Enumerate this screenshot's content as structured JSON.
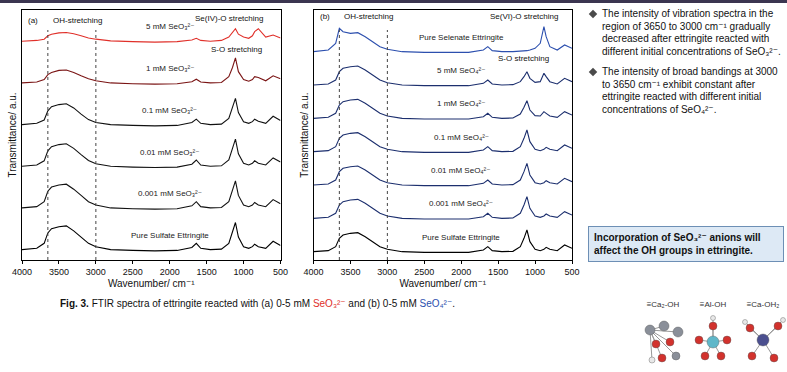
{
  "chart_data": [
    {
      "type": "line",
      "panel": "(a)",
      "x_label": "Wavenumber/ cm⁻¹",
      "y_label": "Transmittance/ a.u.",
      "xlim": [
        4000,
        500
      ],
      "xticks": [
        4000,
        3500,
        3000,
        2500,
        2000,
        1500,
        1000,
        500
      ],
      "ylim": [
        0,
        6
      ],
      "grid": false,
      "tick_labels": "x",
      "marked_wavenumbers": [
        3650,
        3000
      ],
      "annotations": [
        {
          "text": "(a)",
          "x": 3850,
          "y": 5.75
        },
        {
          "text": "OH-stretching",
          "x": 3250,
          "y": 5.75
        },
        {
          "text": "Se(IV)-O stretching",
          "x": 1200,
          "y": 5.8
        },
        {
          "text": "S-O stretching",
          "x": 1100,
          "y": 5.05
        }
      ],
      "x": [
        4000,
        3800,
        3700,
        3650,
        3600,
        3500,
        3400,
        3300,
        3200,
        3100,
        3000,
        2800,
        2500,
        2200,
        1900,
        1700,
        1640,
        1580,
        1450,
        1300,
        1200,
        1150,
        1110,
        1070,
        1000,
        930,
        880,
        850,
        800,
        700,
        600,
        500
      ],
      "series": [
        {
          "name": "Pure Sulfate Ettringite",
          "color": "#000000",
          "values": [
            0.25,
            0.28,
            0.4,
            0.65,
            0.75,
            0.8,
            0.82,
            0.7,
            0.55,
            0.4,
            0.32,
            0.25,
            0.23,
            0.22,
            0.23,
            0.3,
            0.4,
            0.28,
            0.25,
            0.26,
            0.4,
            0.65,
            0.9,
            0.55,
            0.32,
            0.28,
            0.32,
            0.38,
            0.32,
            0.28,
            0.45,
            0.35
          ]
        },
        {
          "name": "0.001 mM SeO₃²⁻",
          "color": "#111111",
          "values": [
            1.25,
            1.28,
            1.4,
            1.65,
            1.75,
            1.8,
            1.82,
            1.7,
            1.55,
            1.4,
            1.32,
            1.25,
            1.23,
            1.22,
            1.23,
            1.3,
            1.4,
            1.28,
            1.25,
            1.26,
            1.4,
            1.65,
            1.9,
            1.55,
            1.32,
            1.28,
            1.32,
            1.38,
            1.32,
            1.28,
            1.45,
            1.35
          ]
        },
        {
          "name": "0.01 mM SeO₃²⁻",
          "color": "#111111",
          "values": [
            2.25,
            2.28,
            2.38,
            2.62,
            2.72,
            2.77,
            2.79,
            2.68,
            2.53,
            2.39,
            2.31,
            2.25,
            2.23,
            2.22,
            2.23,
            2.3,
            2.4,
            2.28,
            2.25,
            2.26,
            2.4,
            2.65,
            2.9,
            2.55,
            2.32,
            2.28,
            2.32,
            2.38,
            2.32,
            2.28,
            2.45,
            2.35
          ]
        },
        {
          "name": "0.1 mM SeO₃²⁻",
          "color": "#111111",
          "values": [
            3.25,
            3.28,
            3.36,
            3.58,
            3.68,
            3.73,
            3.75,
            3.65,
            3.5,
            3.37,
            3.3,
            3.25,
            3.23,
            3.22,
            3.23,
            3.3,
            3.38,
            3.28,
            3.25,
            3.26,
            3.4,
            3.64,
            3.88,
            3.54,
            3.32,
            3.28,
            3.32,
            3.38,
            3.33,
            3.28,
            3.45,
            3.35
          ]
        },
        {
          "name": "1 mM SeO₃²⁻",
          "color": "#7a1414",
          "values": [
            4.25,
            4.27,
            4.33,
            4.45,
            4.5,
            4.55,
            4.56,
            4.5,
            4.42,
            4.35,
            4.3,
            4.25,
            4.23,
            4.22,
            4.23,
            4.28,
            4.34,
            4.27,
            4.25,
            4.26,
            4.4,
            4.62,
            4.85,
            4.52,
            4.33,
            4.29,
            4.33,
            4.4,
            4.38,
            4.3,
            4.42,
            4.35
          ]
        },
        {
          "name": "5 mM SeO₃²⁻",
          "color": "#e0302a",
          "values": [
            5.25,
            5.27,
            5.3,
            5.38,
            5.42,
            5.45,
            5.46,
            5.43,
            5.38,
            5.33,
            5.3,
            5.26,
            5.24,
            5.23,
            5.24,
            5.28,
            5.32,
            5.27,
            5.25,
            5.27,
            5.35,
            5.45,
            5.55,
            5.42,
            5.35,
            5.32,
            5.38,
            5.48,
            5.55,
            5.35,
            5.4,
            5.33
          ]
        }
      ]
    },
    {
      "type": "line",
      "panel": "(b)",
      "x_label": "Wavenumber/ cm⁻¹",
      "y_label": "Transmittance/ a.u.",
      "xlim": [
        4000,
        500
      ],
      "xticks": [
        4000,
        3500,
        3000,
        2500,
        2000,
        1500,
        1000,
        500
      ],
      "ylim": [
        0,
        7.5
      ],
      "grid": false,
      "tick_labels": "x",
      "marked_wavenumbers": [
        3650,
        3000
      ],
      "annotations": [
        {
          "text": "(b)",
          "x": 3850,
          "y": 7.3
        },
        {
          "text": "OH-stretching",
          "x": 3250,
          "y": 7.3
        },
        {
          "text": "Se(VI)-O stretching",
          "x": 1150,
          "y": 7.3
        },
        {
          "text": "S-O stretching",
          "x": 1150,
          "y": 6.05
        }
      ],
      "x": [
        4000,
        3800,
        3700,
        3650,
        3600,
        3500,
        3400,
        3300,
        3200,
        3100,
        3000,
        2800,
        2500,
        2200,
        1900,
        1700,
        1640,
        1580,
        1450,
        1300,
        1200,
        1150,
        1110,
        1070,
        1000,
        930,
        880,
        850,
        800,
        700,
        600,
        500
      ],
      "series": [
        {
          "name": "Pure Sulfate Ettringite",
          "color": "#000000",
          "values": [
            0.25,
            0.28,
            0.4,
            0.65,
            0.75,
            0.8,
            0.82,
            0.7,
            0.55,
            0.4,
            0.32,
            0.25,
            0.23,
            0.22,
            0.23,
            0.3,
            0.4,
            0.28,
            0.25,
            0.26,
            0.4,
            0.65,
            0.9,
            0.55,
            0.32,
            0.28,
            0.32,
            0.38,
            0.32,
            0.28,
            0.45,
            0.35
          ]
        },
        {
          "name": "0.001 mM SeO₄²⁻",
          "color": "#1c2f6e",
          "values": [
            1.25,
            1.28,
            1.4,
            1.65,
            1.75,
            1.8,
            1.82,
            1.7,
            1.55,
            1.4,
            1.32,
            1.25,
            1.23,
            1.22,
            1.23,
            1.3,
            1.4,
            1.28,
            1.25,
            1.26,
            1.4,
            1.65,
            1.9,
            1.55,
            1.32,
            1.28,
            1.32,
            1.38,
            1.32,
            1.28,
            1.45,
            1.35
          ]
        },
        {
          "name": "0.01 mM SeO₄²⁻",
          "color": "#1c2f6e",
          "values": [
            2.25,
            2.28,
            2.4,
            2.65,
            2.75,
            2.8,
            2.82,
            2.7,
            2.55,
            2.4,
            2.32,
            2.25,
            2.23,
            2.22,
            2.23,
            2.3,
            2.4,
            2.28,
            2.25,
            2.26,
            2.4,
            2.65,
            2.9,
            2.55,
            2.32,
            2.28,
            2.32,
            2.38,
            2.32,
            2.28,
            2.45,
            2.35
          ]
        },
        {
          "name": "0.1 mM SeO₄²⁻",
          "color": "#1c2f6e",
          "values": [
            3.25,
            3.28,
            3.4,
            3.65,
            3.75,
            3.8,
            3.82,
            3.7,
            3.55,
            3.4,
            3.32,
            3.25,
            3.23,
            3.22,
            3.23,
            3.3,
            3.4,
            3.28,
            3.25,
            3.26,
            3.4,
            3.65,
            3.9,
            3.55,
            3.32,
            3.28,
            3.32,
            3.38,
            3.32,
            3.28,
            3.45,
            3.35
          ]
        },
        {
          "name": "1 mM SeO₄²⁻",
          "color": "#1c2f6e",
          "values": [
            4.25,
            4.28,
            4.4,
            4.65,
            4.75,
            4.8,
            4.82,
            4.7,
            4.55,
            4.4,
            4.32,
            4.25,
            4.23,
            4.22,
            4.23,
            4.3,
            4.4,
            4.28,
            4.25,
            4.26,
            4.38,
            4.58,
            4.78,
            4.5,
            4.33,
            4.32,
            4.45,
            4.4,
            4.32,
            4.28,
            4.45,
            4.35
          ]
        },
        {
          "name": "5 mM SeO₄²⁻",
          "color": "#1c2f6e",
          "values": [
            5.25,
            5.28,
            5.4,
            5.65,
            5.75,
            5.8,
            5.82,
            5.7,
            5.55,
            5.4,
            5.32,
            5.25,
            5.23,
            5.22,
            5.23,
            5.3,
            5.4,
            5.28,
            5.25,
            5.26,
            5.35,
            5.5,
            5.65,
            5.45,
            5.33,
            5.35,
            5.6,
            5.5,
            5.35,
            5.28,
            5.45,
            5.35
          ]
        },
        {
          "name": "Pure Selenate Ettringite",
          "color": "#2c4fae",
          "values": [
            6.25,
            6.3,
            6.5,
            6.95,
            6.85,
            6.8,
            6.82,
            6.7,
            6.55,
            6.4,
            6.32,
            6.25,
            6.23,
            6.22,
            6.23,
            6.3,
            6.4,
            6.28,
            6.25,
            6.25,
            6.26,
            6.27,
            6.28,
            6.3,
            6.35,
            6.5,
            7.0,
            6.7,
            6.4,
            6.3,
            6.45,
            6.35
          ]
        }
      ]
    }
  ],
  "caption": [
    {
      "text": "Fig. 3."
    },
    {
      "text": " FTIR spectra of ettringite reacted with (a) 0-5 mM "
    },
    {
      "text": "SeO₃²⁻",
      "color": "#e0302a"
    },
    {
      "text": " and (b) 0-5 mM "
    },
    {
      "text": "SeO₄²⁻",
      "color": "#2c4fae"
    },
    {
      "text": "."
    }
  ],
  "bullets": [
    "The intensity of vibration spectra in the region of 3650 to 3000 cm⁻¹ gradually decreased after ettringite reacted with different initial concentrations of SeO₃²⁻.",
    "The intensity of broad bandings at 3000 to 3650 cm⁻¹ exhibit constant after ettringite reacted with different initial concentrations of SeO₄²⁻."
  ],
  "highlight": "Incorporation of SeO₃²⁻ anions will affect the OH groups in ettringite.",
  "structures": [
    "≡Ca₂-OH",
    "≡Al-OH",
    "≡Ca-OH₂"
  ]
}
